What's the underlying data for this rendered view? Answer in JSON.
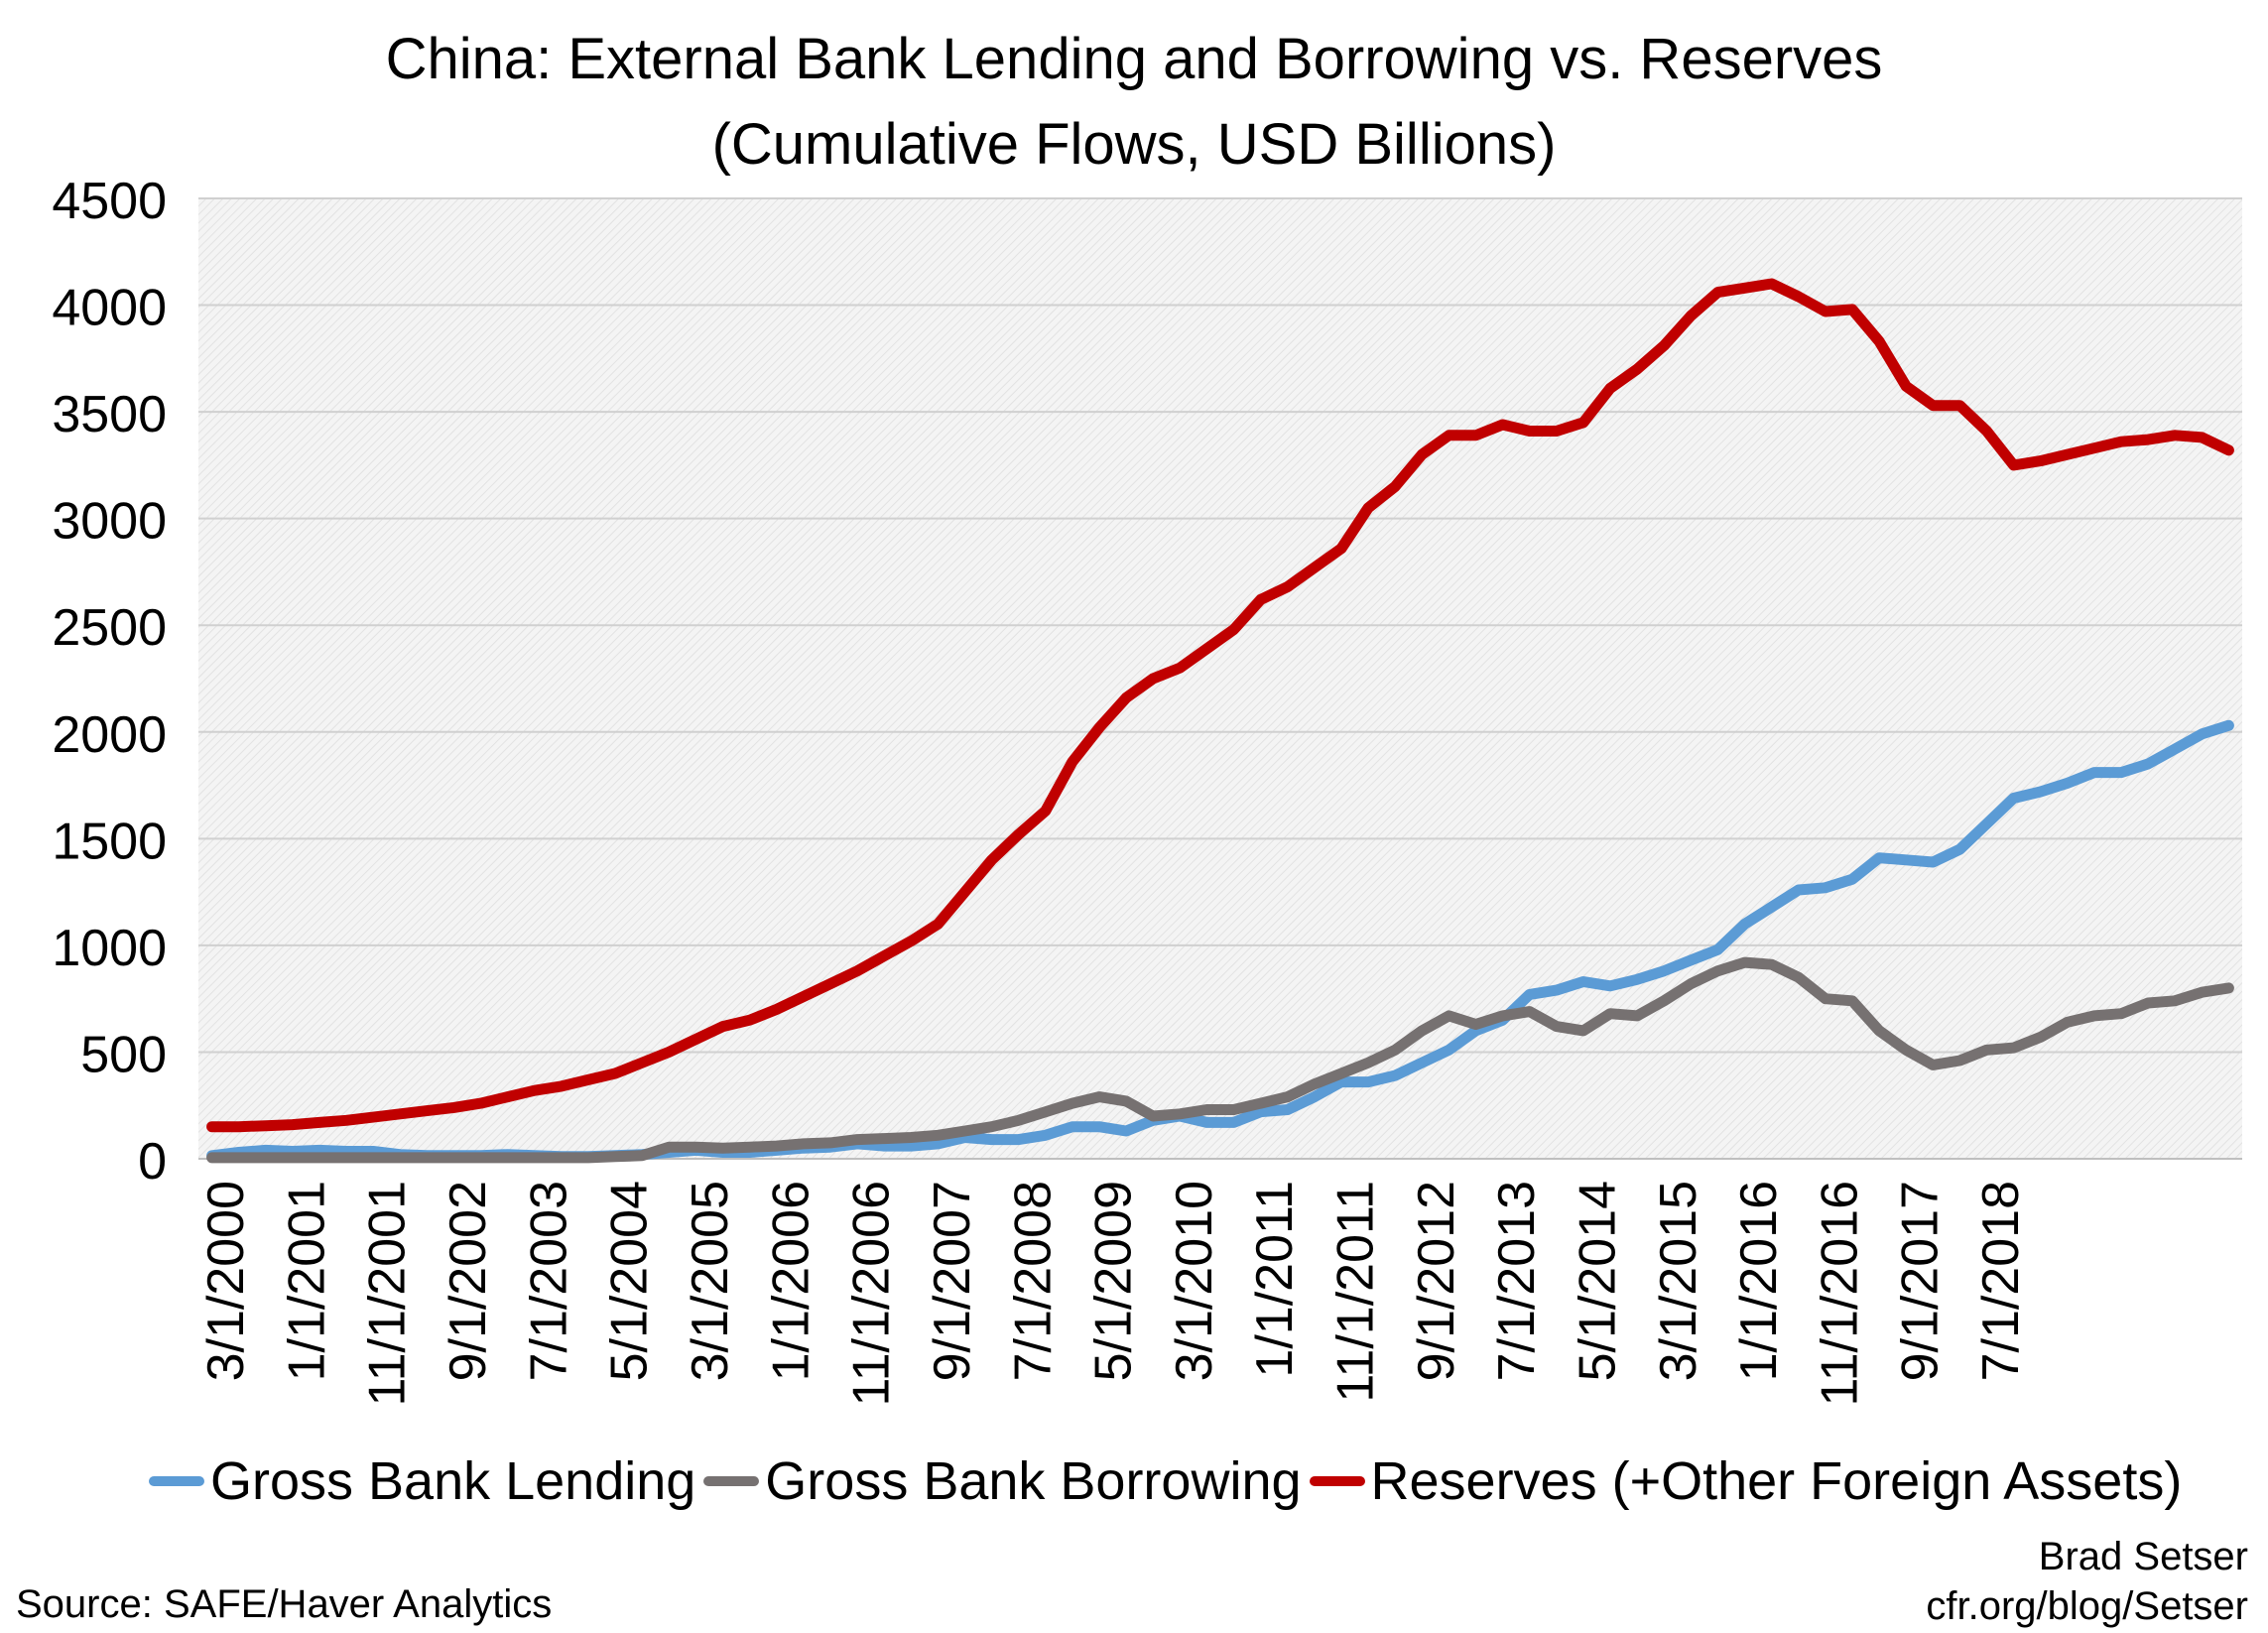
{
  "chart_data": {
    "type": "line",
    "title": "China: External Bank Lending and Borrowing vs. Reserves",
    "subtitle": "(Cumulative Flows, USD Billions)",
    "ylim": [
      0,
      4500
    ],
    "yticks": [
      0,
      500,
      1000,
      1500,
      2000,
      2500,
      3000,
      3500,
      4000,
      4500
    ],
    "grid": true,
    "legend_position": "bottom",
    "xtick_labels": [
      "3/1/2000",
      "1/1/2001",
      "11/1/2001",
      "9/1/2002",
      "7/1/2003",
      "5/1/2004",
      "3/1/2005",
      "1/1/2006",
      "11/1/2006",
      "9/1/2007",
      "7/1/2008",
      "5/1/2009",
      "3/1/2010",
      "1/1/2011",
      "11/1/2011",
      "9/1/2012",
      "7/1/2013",
      "5/1/2014",
      "3/1/2015",
      "1/1/2016",
      "11/1/2016",
      "9/1/2017",
      "7/1/2018"
    ],
    "x": [
      "2000Q1",
      "2000Q2",
      "2000Q3",
      "2000Q4",
      "2001Q1",
      "2001Q2",
      "2001Q3",
      "2001Q4",
      "2002Q1",
      "2002Q2",
      "2002Q3",
      "2002Q4",
      "2003Q1",
      "2003Q2",
      "2003Q3",
      "2003Q4",
      "2004Q1",
      "2004Q2",
      "2004Q3",
      "2004Q4",
      "2005Q1",
      "2005Q2",
      "2005Q3",
      "2005Q4",
      "2006Q1",
      "2006Q2",
      "2006Q3",
      "2006Q4",
      "2007Q1",
      "2007Q2",
      "2007Q3",
      "2007Q4",
      "2008Q1",
      "2008Q2",
      "2008Q3",
      "2008Q4",
      "2009Q1",
      "2009Q2",
      "2009Q3",
      "2009Q4",
      "2010Q1",
      "2010Q2",
      "2010Q3",
      "2010Q4",
      "2011Q1",
      "2011Q2",
      "2011Q3",
      "2011Q4",
      "2012Q1",
      "2012Q2",
      "2012Q3",
      "2012Q4",
      "2013Q1",
      "2013Q2",
      "2013Q3",
      "2013Q4",
      "2014Q1",
      "2014Q2",
      "2014Q3",
      "2014Q4",
      "2015Q1",
      "2015Q2",
      "2015Q3",
      "2015Q4",
      "2016Q1",
      "2016Q2",
      "2016Q3",
      "2016Q4",
      "2017Q1",
      "2017Q2",
      "2017Q3",
      "2017Q4",
      "2018Q1",
      "2018Q2",
      "2018Q3",
      "2018Q4"
    ],
    "series": [
      {
        "name": "Gross Bank Lending",
        "color": "#5b9bd5",
        "values": [
          15,
          30,
          40,
          35,
          40,
          35,
          35,
          20,
          15,
          15,
          15,
          20,
          15,
          10,
          10,
          15,
          20,
          30,
          40,
          30,
          30,
          40,
          50,
          55,
          70,
          60,
          60,
          70,
          100,
          90,
          90,
          110,
          150,
          150,
          130,
          180,
          200,
          170,
          170,
          220,
          230,
          290,
          360,
          360,
          390,
          450,
          510,
          600,
          650,
          770,
          790,
          830,
          810,
          840,
          880,
          930,
          980,
          1100,
          1180,
          1260,
          1270,
          1310,
          1410,
          1400,
          1390,
          1450,
          1570,
          1690,
          1720,
          1760,
          1810,
          1810,
          1850,
          1920,
          1990,
          2030
        ]
      },
      {
        "name": "Gross Bank Borrowing",
        "color": "#767171",
        "values": [
          5,
          5,
          5,
          5,
          5,
          5,
          5,
          5,
          5,
          5,
          5,
          5,
          5,
          5,
          5,
          10,
          15,
          55,
          55,
          50,
          55,
          60,
          70,
          75,
          90,
          95,
          100,
          110,
          130,
          150,
          180,
          220,
          260,
          290,
          270,
          200,
          210,
          230,
          230,
          260,
          290,
          350,
          400,
          450,
          510,
          600,
          670,
          630,
          670,
          690,
          620,
          600,
          680,
          670,
          740,
          820,
          880,
          920,
          910,
          850,
          750,
          740,
          600,
          510,
          440,
          460,
          510,
          520,
          570,
          640,
          670,
          680,
          730,
          740,
          780,
          800
        ]
      },
      {
        "name": "Reserves (+Other Foreign Assets)",
        "color": "#c00000",
        "values": [
          150,
          150,
          155,
          160,
          170,
          180,
          195,
          210,
          225,
          240,
          260,
          290,
          320,
          340,
          370,
          400,
          450,
          500,
          560,
          620,
          650,
          700,
          760,
          820,
          880,
          950,
          1020,
          1100,
          1250,
          1400,
          1520,
          1630,
          1860,
          2020,
          2160,
          2250,
          2300,
          2390,
          2480,
          2620,
          2680,
          2770,
          2860,
          3050,
          3150,
          3300,
          3390,
          3390,
          3440,
          3410,
          3410,
          3450,
          3610,
          3700,
          3810,
          3950,
          4060,
          4080,
          4100,
          4040,
          3970,
          3980,
          3830,
          3620,
          3530,
          3530,
          3410,
          3250,
          3270,
          3300,
          3330,
          3360,
          3370,
          3390,
          3380,
          3320
        ]
      }
    ]
  },
  "legend": {
    "items": [
      {
        "label": "Gross Bank Lending",
        "color": "#5b9bd5"
      },
      {
        "label": "Gross Bank Borrowing",
        "color": "#767171"
      },
      {
        "label": "Reserves (+Other Foreign Assets)",
        "color": "#c00000"
      }
    ]
  },
  "footer": {
    "source": "Source: SAFE/Haver Analytics",
    "author": "Brad Setser",
    "url": "cfr.org/blog/Setser"
  }
}
